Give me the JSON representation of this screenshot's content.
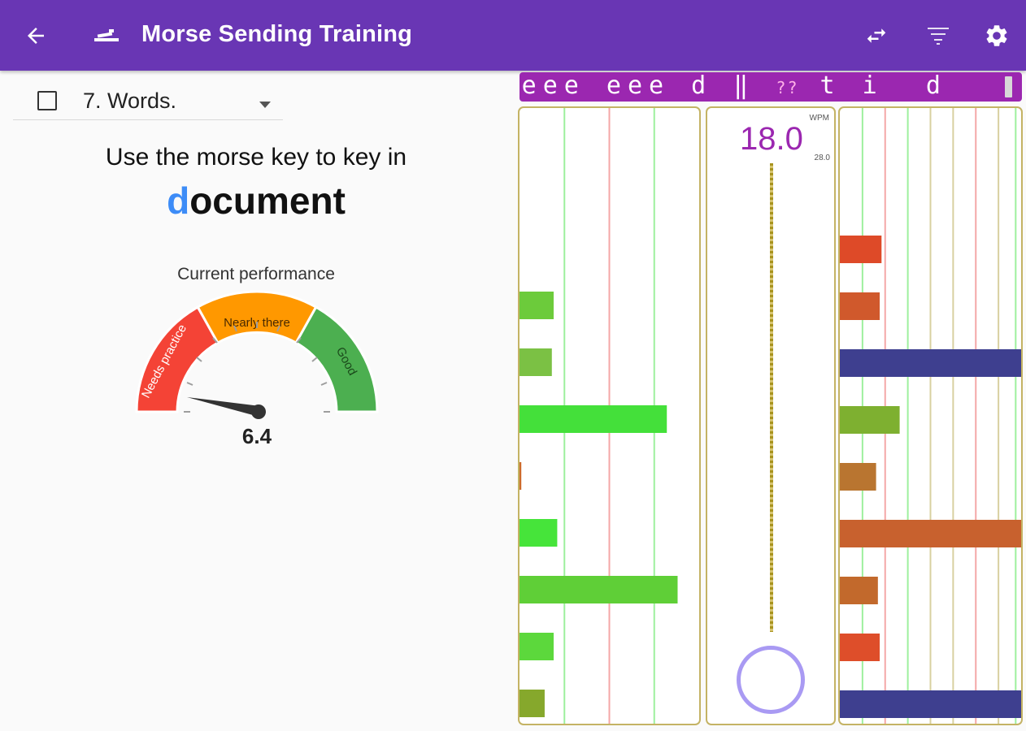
{
  "app_bar": {
    "title": "Morse Sending Training",
    "icons": [
      "arrow-back-icon",
      "morse-key-icon",
      "swap-icon",
      "filter-icon",
      "settings-icon"
    ]
  },
  "training": {
    "mode_label": "7. Words.",
    "prompt": "Use the morse key to key in",
    "target_word_done": "d",
    "target_word_rest": "ocument"
  },
  "performance": {
    "label": "Current performance",
    "value": "6.4",
    "value_number": 6.4,
    "scale_max": 100,
    "bands": [
      {
        "label": "Needs practice",
        "color": "#f44336"
      },
      {
        "label": "Nearly there",
        "color": "#ff9800"
      },
      {
        "label": "Good",
        "color": "#4caf50"
      }
    ]
  },
  "decoded": {
    "text_pre": "eee eee d ‖ ",
    "unknown": "??",
    "text_post": " t i  d "
  },
  "wpm": {
    "unit": "WPM",
    "value": "18.0",
    "max": "28.0"
  },
  "colors": {
    "app_bar": "#6936b4",
    "banner": "#9b27b0",
    "panel_border": "#c4b364",
    "highlight": "#3d8cf7",
    "key_circle": "#a99af3"
  },
  "timing_left": {
    "guides": [
      {
        "pos": 0.25,
        "color": "#9ef09e"
      },
      {
        "pos": 0.5,
        "color": "#f4a7a7"
      },
      {
        "pos": 0.75,
        "color": "#9ef09e"
      }
    ],
    "bars": [
      {
        "len": 0.19,
        "color": "#6ccb3b"
      },
      {
        "len": 0.18,
        "color": "#7bc144"
      },
      {
        "len": 0.82,
        "color": "#44e03a"
      },
      {
        "len": 0.01,
        "color": "#cc6a2a"
      },
      {
        "len": 0.21,
        "color": "#46e43a"
      },
      {
        "len": 0.88,
        "color": "#5fcf37"
      },
      {
        "len": 0.19,
        "color": "#5cd83c"
      },
      {
        "len": 0.14,
        "color": "#86a82c"
      }
    ]
  },
  "timing_right": {
    "guides": [
      {
        "pos": 0.125,
        "color": "#9ef09e"
      },
      {
        "pos": 0.25,
        "color": "#f4a7a7"
      },
      {
        "pos": 0.375,
        "color": "#9ef09e"
      },
      {
        "pos": 0.5,
        "color": "#d8d0a0"
      },
      {
        "pos": 0.625,
        "color": "#d8d0a0"
      },
      {
        "pos": 0.75,
        "color": "#f4a7a7"
      },
      {
        "pos": 0.875,
        "color": "#d8d0a0"
      },
      {
        "pos": 0.97,
        "color": "#9ef09e"
      }
    ],
    "bars": [
      {
        "len": 0.23,
        "color": "#de4a28"
      },
      {
        "len": 0.22,
        "color": "#d0592c"
      },
      {
        "len": 1.0,
        "color": "#3e3f8f"
      },
      {
        "len": 0.33,
        "color": "#7eb030"
      },
      {
        "len": 0.2,
        "color": "#b97530"
      },
      {
        "len": 1.0,
        "color": "#c8612e"
      },
      {
        "len": 0.21,
        "color": "#c2692c"
      },
      {
        "len": 0.22,
        "color": "#de4e2a"
      },
      {
        "len": 1.0,
        "color": "#3e3f8f"
      }
    ]
  }
}
